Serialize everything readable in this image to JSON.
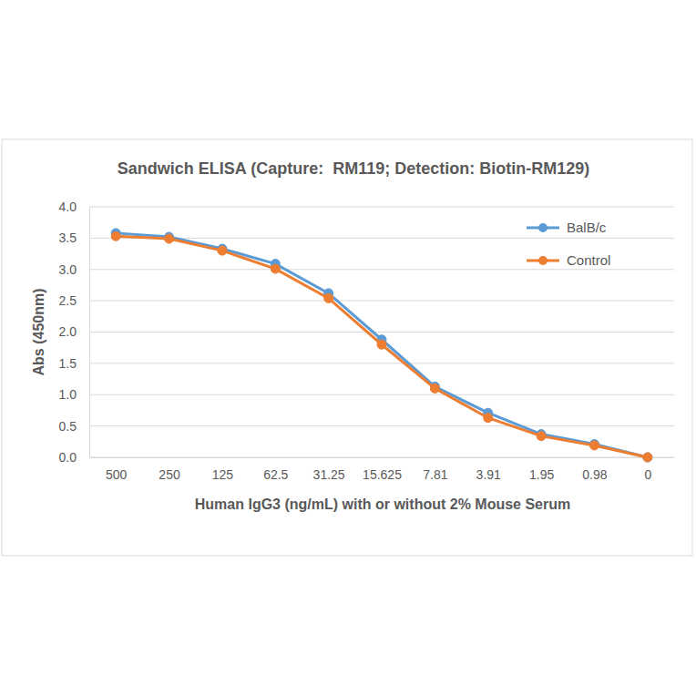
{
  "chart_data": {
    "type": "line",
    "title": "Sandwich ELISA (Capture:  RM119; Detection: Biotin-RM129)",
    "x_label": "Human IgG3 (ng/mL) with or without 2% Mouse Serum",
    "y_label": "Abs (450nm)",
    "categories": [
      "500",
      "250",
      "125",
      "62.5",
      "31.25",
      "15.625",
      "7.81",
      "3.91",
      "1.95",
      "0.98",
      "0"
    ],
    "series": [
      {
        "name": "BalB/c",
        "color": "#5b9bd5",
        "marker": "circle",
        "values": [
          3.58,
          3.52,
          3.33,
          3.09,
          2.62,
          1.88,
          1.13,
          0.71,
          0.37,
          0.21,
          0.0
        ]
      },
      {
        "name": "Control",
        "color": "#ed7d31",
        "marker": "circle",
        "values": [
          3.53,
          3.49,
          3.3,
          3.01,
          2.54,
          1.8,
          1.1,
          0.63,
          0.34,
          0.19,
          0.0
        ]
      }
    ],
    "ylim": [
      0,
      4
    ],
    "yticks": [
      {
        "value": 0,
        "label": "0.0"
      },
      {
        "value": 0.5,
        "label": "0.5"
      },
      {
        "value": 1,
        "label": "1.0"
      },
      {
        "value": 1.5,
        "label": "1.5"
      },
      {
        "value": 2,
        "label": "2.0"
      },
      {
        "value": 2.5,
        "label": "2.5"
      },
      {
        "value": 3,
        "label": "3.0"
      },
      {
        "value": 3.5,
        "label": "3.5"
      },
      {
        "value": 4,
        "label": "4.0"
      }
    ],
    "grid": true,
    "legend": "top-right"
  }
}
